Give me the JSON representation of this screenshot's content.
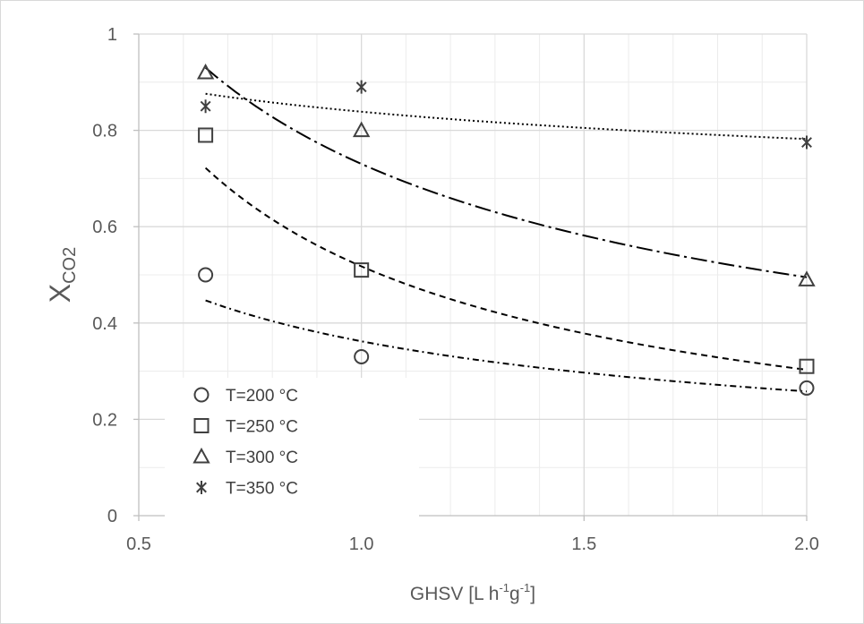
{
  "chart_data": {
    "type": "scatter",
    "title": "",
    "xlabel": {
      "main": "GHSV  [L h",
      "sup1": "-1",
      "mid": "g",
      "sup2": "-1",
      "end": "]"
    },
    "ylabel": {
      "main": "X",
      "sub": "CO2"
    },
    "xlim": [
      0.5,
      2.0
    ],
    "ylim": [
      0,
      1
    ],
    "x_ticks": [
      0.5,
      1.0,
      1.5,
      2.0
    ],
    "x_tick_labels": [
      "0.5",
      "1.0",
      "1.5",
      "2.0"
    ],
    "x_minor_step": 0.1,
    "y_ticks": [
      0,
      0.2,
      0.4,
      0.6,
      0.8,
      1
    ],
    "y_tick_labels": [
      "0",
      "0.2",
      "0.4",
      "0.6",
      "0.8",
      "1"
    ],
    "y_minor_step": 0.1,
    "grid": true,
    "legend_position": "bottom-left",
    "series": [
      {
        "name": "T=200 °C",
        "marker": "circle",
        "trend_style": "dash-dot",
        "x": [
          0.65,
          1.0,
          2.0
        ],
        "y": [
          0.5,
          0.33,
          0.265
        ],
        "trend_x": [
          0.65,
          2.0
        ],
        "trend_y": [
          0.447,
          0.258
        ]
      },
      {
        "name": "T=250 °C",
        "marker": "square",
        "trend_style": "dashed",
        "x": [
          0.65,
          1.0,
          2.0
        ],
        "y": [
          0.79,
          0.51,
          0.31
        ],
        "trend_x": [
          0.65,
          2.0
        ],
        "trend_y": [
          0.722,
          0.303
        ]
      },
      {
        "name": "T=300 °C",
        "marker": "triangle",
        "trend_style": "long-dash-dot",
        "x": [
          0.65,
          1.0,
          2.0
        ],
        "y": [
          0.92,
          0.8,
          0.49
        ],
        "trend_x": [
          0.65,
          2.0
        ],
        "trend_y": [
          0.93,
          0.495
        ]
      },
      {
        "name": "T=350 °C",
        "marker": "asterisk",
        "trend_style": "dotted",
        "x": [
          0.65,
          1.0,
          2.0
        ],
        "y": [
          0.85,
          0.89,
          0.775
        ],
        "trend_x": [
          0.65,
          2.0
        ],
        "trend_y": [
          0.876,
          0.782
        ]
      }
    ]
  },
  "colors": {
    "grid_major": "#d9d9d9",
    "grid_minor": "#ececec",
    "axis": "#bfbfbf",
    "marker": "#404040",
    "trend": "#000000"
  }
}
